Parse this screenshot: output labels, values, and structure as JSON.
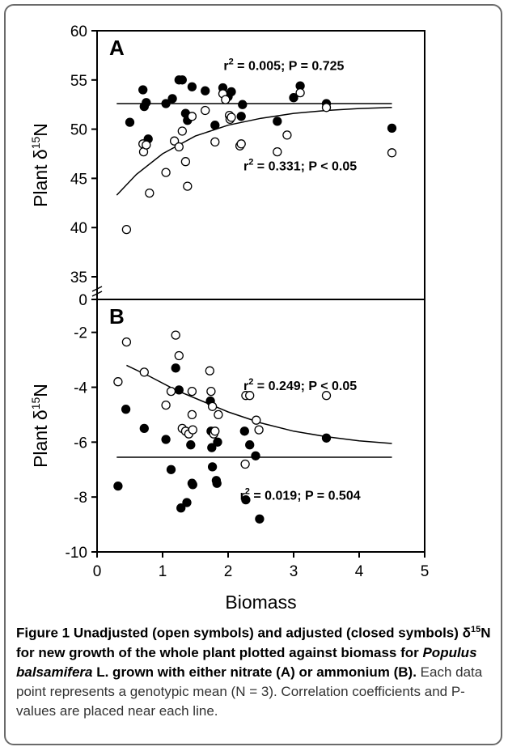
{
  "chart_data": [
    {
      "type": "scatter",
      "panel_label": "A",
      "ylabel": "Plant δ15N",
      "ylabel_parts": [
        "Plant δ",
        "15",
        "N"
      ],
      "xlim": [
        0,
        5
      ],
      "ylim": [
        0,
        60
      ],
      "y_axis_break": true,
      "yticks": [
        "0",
        "35",
        "40",
        "45",
        "50",
        "55",
        "60"
      ],
      "series": [
        {
          "name": "adjusted (closed)",
          "marker": "closed",
          "points": [
            [
              0.5,
              50.7
            ],
            [
              0.7,
              54.0
            ],
            [
              0.72,
              52.3
            ],
            [
              0.75,
              52.7
            ],
            [
              0.78,
              49.0
            ],
            [
              1.05,
              52.6
            ],
            [
              1.15,
              53.1
            ],
            [
              1.25,
              55.0
            ],
            [
              1.3,
              55.0
            ],
            [
              1.35,
              51.6
            ],
            [
              1.38,
              50.9
            ],
            [
              1.45,
              54.3
            ],
            [
              1.65,
              53.9
            ],
            [
              1.8,
              50.4
            ],
            [
              1.92,
              54.2
            ],
            [
              1.95,
              53.5
            ],
            [
              2.0,
              53.3
            ],
            [
              2.05,
              53.8
            ],
            [
              2.2,
              51.3
            ],
            [
              2.22,
              52.5
            ],
            [
              2.75,
              50.8
            ],
            [
              3.0,
              53.2
            ],
            [
              3.1,
              54.4
            ],
            [
              3.5,
              52.6
            ],
            [
              4.5,
              50.1
            ]
          ]
        },
        {
          "name": "unadjusted (open)",
          "marker": "open",
          "points": [
            [
              0.45,
              39.8
            ],
            [
              0.7,
              48.5
            ],
            [
              0.71,
              47.7
            ],
            [
              0.75,
              48.4
            ],
            [
              0.8,
              43.5
            ],
            [
              1.05,
              45.6
            ],
            [
              1.18,
              48.8
            ],
            [
              1.25,
              48.2
            ],
            [
              1.3,
              49.8
            ],
            [
              1.35,
              46.7
            ],
            [
              1.38,
              44.2
            ],
            [
              1.45,
              51.3
            ],
            [
              1.65,
              51.9
            ],
            [
              1.8,
              48.7
            ],
            [
              1.92,
              53.6
            ],
            [
              1.96,
              53.0
            ],
            [
              2.02,
              51.4
            ],
            [
              2.03,
              51.0
            ],
            [
              2.05,
              51.2
            ],
            [
              2.18,
              48.3
            ],
            [
              2.2,
              48.5
            ],
            [
              2.75,
              47.7
            ],
            [
              2.9,
              49.4
            ],
            [
              3.1,
              53.7
            ],
            [
              3.5,
              52.2
            ],
            [
              4.5,
              47.6
            ]
          ]
        }
      ],
      "fits": [
        {
          "name": "closed fit",
          "shape": "flat",
          "x": [
            0.3,
            4.5
          ],
          "y": [
            52.6,
            52.6
          ]
        },
        {
          "name": "open fit",
          "shape": "curve",
          "x": [
            0.3,
            0.6,
            1.0,
            1.5,
            2.0,
            2.5,
            3.0,
            3.5,
            4.0,
            4.5
          ],
          "y": [
            43.3,
            45.4,
            47.5,
            49.3,
            50.4,
            51.1,
            51.6,
            51.9,
            52.1,
            52.2
          ]
        }
      ],
      "annotations": [
        {
          "text": "r² = 0.005; P = 0.725",
          "parts": [
            "r",
            "2",
            " = 0.005; P = 0.725"
          ],
          "x": 2.85,
          "y": 56.0
        },
        {
          "text": "r² = 0.331; P < 0.05",
          "parts": [
            "r",
            "2",
            " = 0.331; P < 0.05"
          ],
          "x": 3.1,
          "y": 45.8
        }
      ]
    },
    {
      "type": "scatter",
      "panel_label": "B",
      "ylabel": "Plant δ15N",
      "ylabel_parts": [
        "Plant δ",
        "15",
        "N"
      ],
      "xlabel": "Biomass",
      "xlim": [
        0,
        5
      ],
      "ylim": [
        -10,
        -0.8
      ],
      "xticks": [
        "0",
        "1",
        "2",
        "3",
        "4",
        "5"
      ],
      "yticks": [
        "-2",
        "-4",
        "-6",
        "-8",
        "-10"
      ],
      "series": [
        {
          "name": "adjusted (closed)",
          "marker": "closed",
          "points": [
            [
              0.32,
              -7.6
            ],
            [
              0.44,
              -4.8
            ],
            [
              0.72,
              -5.5
            ],
            [
              1.05,
              -5.9
            ],
            [
              1.13,
              -7.0
            ],
            [
              1.2,
              -3.3
            ],
            [
              1.25,
              -4.1
            ],
            [
              1.28,
              -8.4
            ],
            [
              1.37,
              -8.2
            ],
            [
              1.43,
              -6.1
            ],
            [
              1.45,
              -7.5
            ],
            [
              1.46,
              -7.55
            ],
            [
              1.73,
              -4.5
            ],
            [
              1.74,
              -5.6
            ],
            [
              1.75,
              -6.2
            ],
            [
              1.76,
              -6.9
            ],
            [
              1.82,
              -7.4
            ],
            [
              1.83,
              -7.5
            ],
            [
              1.84,
              -6.0
            ],
            [
              2.25,
              -5.6
            ],
            [
              2.27,
              -8.1
            ],
            [
              2.33,
              -6.1
            ],
            [
              2.42,
              -6.5
            ],
            [
              2.48,
              -8.8
            ],
            [
              3.5,
              -5.85
            ]
          ]
        },
        {
          "name": "unadjusted (open)",
          "marker": "open",
          "points": [
            [
              0.32,
              -3.8
            ],
            [
              0.45,
              -2.35
            ],
            [
              0.72,
              -3.45
            ],
            [
              1.05,
              -4.65
            ],
            [
              1.13,
              -4.15
            ],
            [
              1.2,
              -2.1
            ],
            [
              1.25,
              -2.85
            ],
            [
              1.3,
              -5.5
            ],
            [
              1.35,
              -5.6
            ],
            [
              1.4,
              -5.7
            ],
            [
              1.45,
              -4.15
            ],
            [
              1.45,
              -5.0
            ],
            [
              1.46,
              -5.55
            ],
            [
              1.72,
              -3.4
            ],
            [
              1.74,
              -4.15
            ],
            [
              1.76,
              -4.7
            ],
            [
              1.78,
              -5.7
            ],
            [
              1.8,
              -5.6
            ],
            [
              1.85,
              -5.0
            ],
            [
              2.26,
              -6.8
            ],
            [
              2.27,
              -4.3
            ],
            [
              2.33,
              -4.3
            ],
            [
              2.43,
              -5.2
            ],
            [
              2.47,
              -5.55
            ],
            [
              3.5,
              -4.3
            ]
          ]
        }
      ],
      "fits": [
        {
          "name": "closed fit",
          "shape": "flat",
          "x": [
            0.3,
            4.5
          ],
          "y": [
            -6.55,
            -6.55
          ]
        },
        {
          "name": "open fit",
          "shape": "curve",
          "x": [
            0.45,
            0.8,
            1.2,
            1.6,
            2.0,
            2.5,
            3.0,
            3.5,
            4.0,
            4.5
          ],
          "y": [
            -3.2,
            -3.6,
            -4.1,
            -4.5,
            -4.9,
            -5.3,
            -5.6,
            -5.8,
            -5.95,
            -6.05
          ]
        }
      ],
      "annotations": [
        {
          "text": "r² = 0.249; P < 0.05",
          "parts": [
            "r",
            "2",
            " = 0.249; P < 0.05"
          ],
          "x": 3.1,
          "y": -4.1
        },
        {
          "text": "r² = 0.019; P = 0.504",
          "parts": [
            "r",
            "2",
            " = 0.019; P = 0.504"
          ],
          "x": 3.1,
          "y": -8.1
        }
      ]
    }
  ],
  "caption": {
    "bold_1": "Figure 1 Unadjusted (open symbols) and adjusted (closed symbols) δ",
    "sup": "15",
    "bold_2": "N for new growth of the whole plant plotted against biomass for ",
    "italic": "Populus balsamifera",
    "bold_3": " L. grown with either nitrate (A) or ammonium (B).",
    "rest": " Each data point represents a genotypic mean (N = 3). Correlation coefficients and P-values are placed near each line."
  }
}
